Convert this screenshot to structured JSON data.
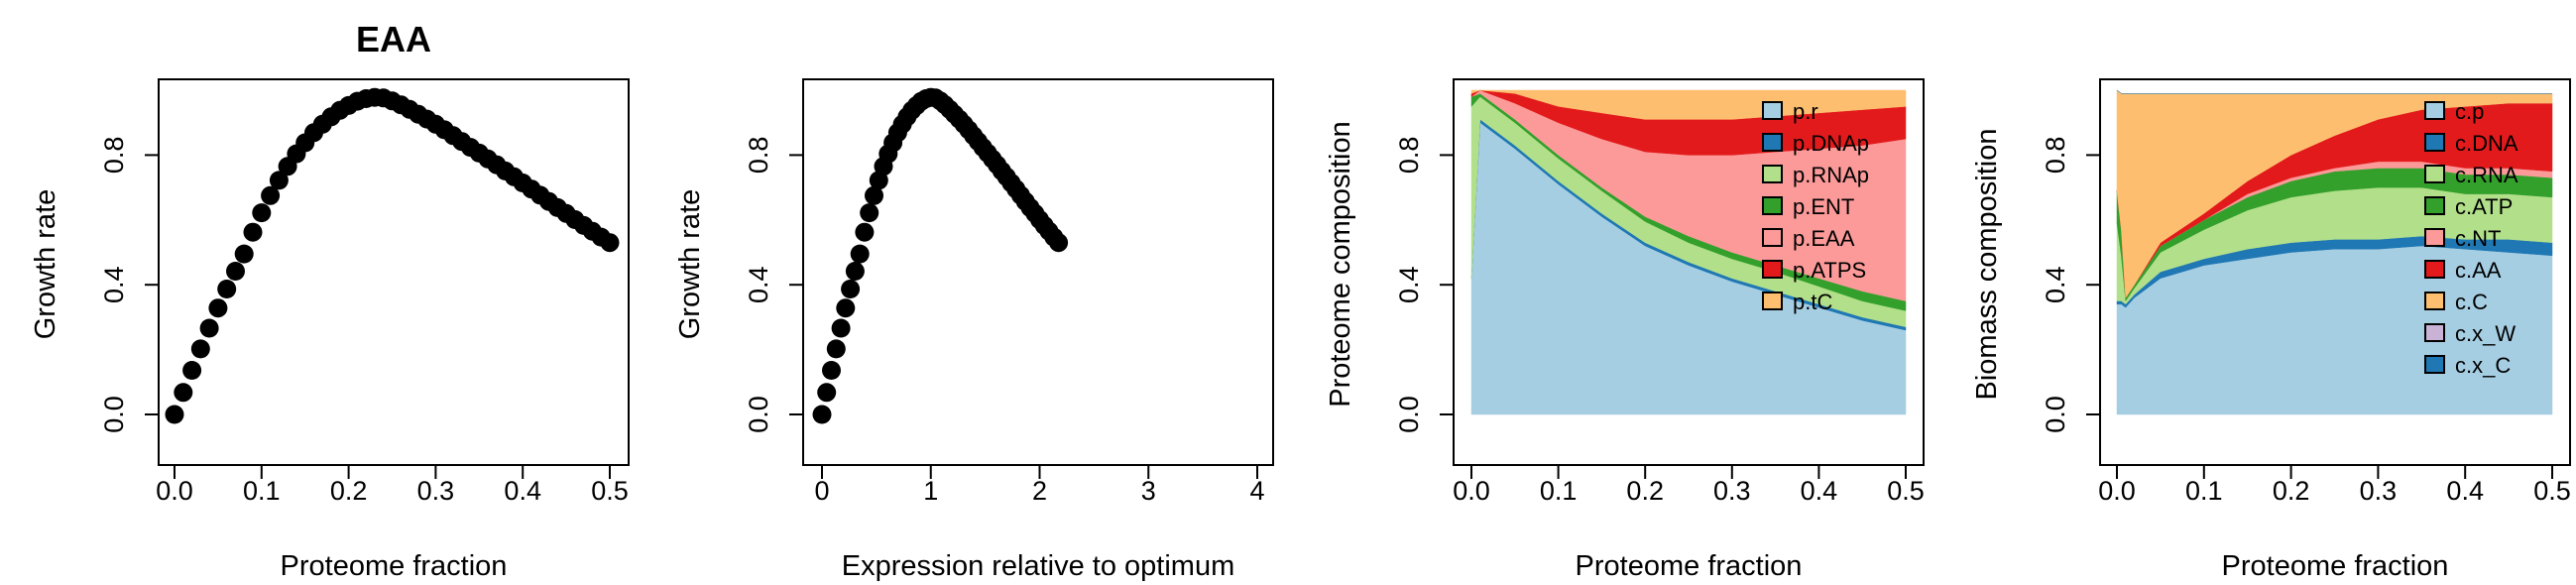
{
  "chart_data": [
    {
      "type": "scatter",
      "title": "EAA",
      "xlabel": "Proteome fraction",
      "ylabel": "Growth rate",
      "xlim": [
        0,
        0.5
      ],
      "ylim": [
        0,
        1
      ],
      "xticks": [
        "0.0",
        "0.1",
        "0.2",
        "0.3",
        "0.4",
        "0.5"
      ],
      "yticks": [
        "0.0",
        "0.4",
        "0.8"
      ],
      "marker": "filled-circle",
      "x": [
        0.0,
        0.01,
        0.02,
        0.03,
        0.04,
        0.05,
        0.06,
        0.07,
        0.08,
        0.09,
        0.1,
        0.11,
        0.12,
        0.13,
        0.14,
        0.15,
        0.16,
        0.17,
        0.18,
        0.19,
        0.2,
        0.21,
        0.22,
        0.23,
        0.24,
        0.25,
        0.26,
        0.27,
        0.28,
        0.29,
        0.3,
        0.31,
        0.32,
        0.33,
        0.34,
        0.35,
        0.36,
        0.37,
        0.38,
        0.39,
        0.4,
        0.41,
        0.42,
        0.43,
        0.44,
        0.45,
        0.46,
        0.47,
        0.48,
        0.49,
        0.5
      ],
      "y": [
        0.0,
        0.068,
        0.136,
        0.202,
        0.266,
        0.328,
        0.387,
        0.442,
        0.495,
        0.562,
        0.622,
        0.675,
        0.722,
        0.765,
        0.804,
        0.838,
        0.869,
        0.895,
        0.918,
        0.938,
        0.953,
        0.966,
        0.974,
        0.978,
        0.976,
        0.967,
        0.955,
        0.941,
        0.926,
        0.911,
        0.895,
        0.878,
        0.86,
        0.842,
        0.824,
        0.806,
        0.788,
        0.77,
        0.751,
        0.733,
        0.714,
        0.695,
        0.676,
        0.657,
        0.638,
        0.62,
        0.601,
        0.583,
        0.565,
        0.547,
        0.53
      ]
    },
    {
      "type": "scatter",
      "title": "",
      "xlabel": "Expression relative to optimum",
      "ylabel": "Growth rate",
      "xlim": [
        0,
        4
      ],
      "ylim": [
        0,
        1
      ],
      "xticks": [
        "0",
        "1",
        "2",
        "3",
        "4"
      ],
      "yticks": [
        "0.0",
        "0.4",
        "0.8"
      ],
      "marker": "filled-circle",
      "x": [
        0.0,
        0.043,
        0.087,
        0.13,
        0.174,
        0.217,
        0.261,
        0.304,
        0.348,
        0.391,
        0.435,
        0.478,
        0.522,
        0.565,
        0.609,
        0.652,
        0.696,
        0.739,
        0.783,
        0.826,
        0.87,
        0.913,
        0.957,
        1.0,
        1.043,
        1.087,
        1.13,
        1.174,
        1.217,
        1.261,
        1.304,
        1.348,
        1.391,
        1.435,
        1.478,
        1.522,
        1.565,
        1.609,
        1.652,
        1.696,
        1.739,
        1.783,
        1.826,
        1.87,
        1.913,
        1.957,
        2.0,
        2.043,
        2.087,
        2.13,
        2.174
      ],
      "y": [
        0.0,
        0.068,
        0.136,
        0.202,
        0.266,
        0.328,
        0.387,
        0.442,
        0.495,
        0.562,
        0.622,
        0.675,
        0.722,
        0.765,
        0.804,
        0.838,
        0.869,
        0.895,
        0.918,
        0.938,
        0.953,
        0.966,
        0.974,
        0.978,
        0.976,
        0.967,
        0.955,
        0.941,
        0.926,
        0.911,
        0.895,
        0.878,
        0.86,
        0.842,
        0.824,
        0.806,
        0.788,
        0.77,
        0.751,
        0.733,
        0.714,
        0.695,
        0.676,
        0.657,
        0.638,
        0.62,
        0.601,
        0.583,
        0.565,
        0.547,
        0.53
      ]
    },
    {
      "type": "area",
      "stacked": true,
      "title": "",
      "xlabel": "Proteome fraction",
      "ylabel": "Proteome composition",
      "xlim": [
        0,
        0.5
      ],
      "ylim": [
        0,
        1
      ],
      "xticks": [
        "0.0",
        "0.1",
        "0.2",
        "0.3",
        "0.4",
        "0.5"
      ],
      "yticks": [
        "0.0",
        "0.4",
        "0.8"
      ],
      "legend_position": "top-right",
      "x": [
        0.0,
        0.01,
        0.05,
        0.1,
        0.15,
        0.2,
        0.25,
        0.3,
        0.35,
        0.4,
        0.45,
        0.5
      ],
      "series": [
        {
          "name": "p.r",
          "color": "#a6cee3",
          "values": [
            0.42,
            0.9,
            0.82,
            0.71,
            0.61,
            0.52,
            0.46,
            0.41,
            0.37,
            0.33,
            0.29,
            0.26
          ]
        },
        {
          "name": "p.DNAp",
          "color": "#1f78b4",
          "values": [
            0.0,
            0.01,
            0.01,
            0.01,
            0.01,
            0.01,
            0.01,
            0.01,
            0.01,
            0.01,
            0.01,
            0.01
          ]
        },
        {
          "name": "p.RNAp",
          "color": "#b2df8a",
          "values": [
            0.53,
            0.07,
            0.07,
            0.07,
            0.07,
            0.065,
            0.06,
            0.06,
            0.06,
            0.055,
            0.05,
            0.05
          ]
        },
        {
          "name": "p.ENT",
          "color": "#33a02c",
          "values": [
            0.03,
            0.01,
            0.01,
            0.01,
            0.01,
            0.015,
            0.02,
            0.02,
            0.02,
            0.025,
            0.03,
            0.03
          ]
        },
        {
          "name": "p.EAA",
          "color": "#fb9a99",
          "values": [
            0.0,
            0.01,
            0.05,
            0.1,
            0.15,
            0.2,
            0.25,
            0.3,
            0.35,
            0.4,
            0.45,
            0.5
          ]
        },
        {
          "name": "p.ATPS",
          "color": "#e31a1c",
          "values": [
            0.01,
            0.0,
            0.03,
            0.05,
            0.08,
            0.1,
            0.11,
            0.11,
            0.11,
            0.11,
            0.11,
            0.1
          ]
        },
        {
          "name": "p.tC",
          "color": "#fdbf6f",
          "values": [
            0.01,
            0.0,
            0.01,
            0.05,
            0.07,
            0.09,
            0.09,
            0.09,
            0.08,
            0.07,
            0.06,
            0.05
          ]
        }
      ]
    },
    {
      "type": "area",
      "stacked": true,
      "title": "",
      "xlabel": "Proteome fraction",
      "ylabel": "Biomass composition",
      "xlim": [
        0,
        0.5
      ],
      "ylim": [
        0,
        1
      ],
      "xticks": [
        "0.0",
        "0.1",
        "0.2",
        "0.3",
        "0.4",
        "0.5"
      ],
      "yticks": [
        "0.0",
        "0.4",
        "0.8"
      ],
      "legend_position": "top-right",
      "x": [
        0.0,
        0.005,
        0.01,
        0.02,
        0.05,
        0.1,
        0.15,
        0.2,
        0.25,
        0.3,
        0.35,
        0.4,
        0.45,
        0.5
      ],
      "series": [
        {
          "name": "c.p",
          "color": "#a6cee3",
          "values": [
            0.34,
            0.34,
            0.33,
            0.36,
            0.42,
            0.46,
            0.48,
            0.5,
            0.51,
            0.51,
            0.52,
            0.51,
            0.5,
            0.49
          ]
        },
        {
          "name": "c.DNA",
          "color": "#1f78b4",
          "values": [
            0.01,
            0.01,
            0.01,
            0.01,
            0.02,
            0.02,
            0.03,
            0.03,
            0.03,
            0.03,
            0.03,
            0.03,
            0.04,
            0.04
          ]
        },
        {
          "name": "c.RNA",
          "color": "#b2df8a",
          "values": [
            0.24,
            0.14,
            0.01,
            0.02,
            0.06,
            0.09,
            0.12,
            0.14,
            0.15,
            0.16,
            0.15,
            0.14,
            0.14,
            0.14
          ]
        },
        {
          "name": "c.ATP",
          "color": "#33a02c",
          "values": [
            0.1,
            0.08,
            0.01,
            0.01,
            0.02,
            0.03,
            0.04,
            0.05,
            0.06,
            0.06,
            0.06,
            0.06,
            0.06,
            0.06
          ]
        },
        {
          "name": "c.NT",
          "color": "#fb9a99",
          "values": [
            0.0,
            0.0,
            0.0,
            0.0,
            0.0,
            0.0,
            0.01,
            0.01,
            0.01,
            0.02,
            0.02,
            0.02,
            0.02,
            0.02
          ]
        },
        {
          "name": "c.AA",
          "color": "#e31a1c",
          "values": [
            0.0,
            0.0,
            0.0,
            0.0,
            0.01,
            0.02,
            0.04,
            0.07,
            0.1,
            0.13,
            0.16,
            0.19,
            0.2,
            0.21
          ]
        },
        {
          "name": "c.C",
          "color": "#fdbf6f",
          "values": [
            0.31,
            0.42,
            0.63,
            0.59,
            0.46,
            0.37,
            0.27,
            0.19,
            0.13,
            0.08,
            0.05,
            0.04,
            0.03,
            0.03
          ]
        },
        {
          "name": "c.x_W",
          "color": "#cab2d6",
          "values": [
            0,
            0,
            0,
            0,
            0,
            0,
            0,
            0,
            0,
            0,
            0,
            0,
            0,
            0
          ]
        },
        {
          "name": "c.x_C",
          "color": "#1f78b4",
          "values": [
            0,
            0,
            0,
            0,
            0,
            0,
            0,
            0,
            0,
            0,
            0,
            0,
            0,
            0
          ]
        }
      ]
    }
  ]
}
